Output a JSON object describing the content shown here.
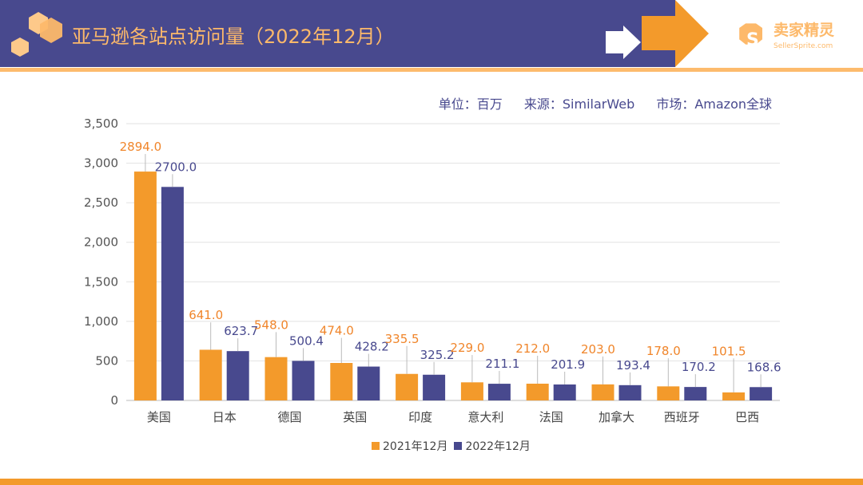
{
  "header": {
    "title": "亚马逊各站点访问量（2022年12月）",
    "logo_text": "卖家精灵",
    "logo_sub": "SellerSprite.com"
  },
  "subtitle": {
    "unit": "单位：百万",
    "source": "来源：SimilarWeb",
    "market": "市场：Amazon全球"
  },
  "colors": {
    "header": "#48498e",
    "accent": "#f39a2b",
    "series2021": "#f39a2b",
    "series2022": "#48498e"
  },
  "chart_data": {
    "type": "bar",
    "categories": [
      "美国",
      "日本",
      "德国",
      "英国",
      "印度",
      "意大利",
      "法国",
      "加拿大",
      "西班牙",
      "巴西"
    ],
    "series": [
      {
        "name": "2021年12月",
        "values": [
          2894.0,
          641.0,
          548.0,
          474.0,
          335.5,
          229.0,
          212.0,
          203.0,
          178.0,
          101.5
        ]
      },
      {
        "name": "2022年12月",
        "values": [
          2700.0,
          623.7,
          500.4,
          428.2,
          325.2,
          211.1,
          201.9,
          193.4,
          170.2,
          168.6
        ]
      }
    ],
    "ylim": [
      0,
      3500
    ],
    "yticks": [
      "0",
      "500",
      "1,000",
      "1,500",
      "2,000",
      "2,500",
      "3,000",
      "3,500"
    ],
    "grid": true,
    "legend": "bottom"
  }
}
